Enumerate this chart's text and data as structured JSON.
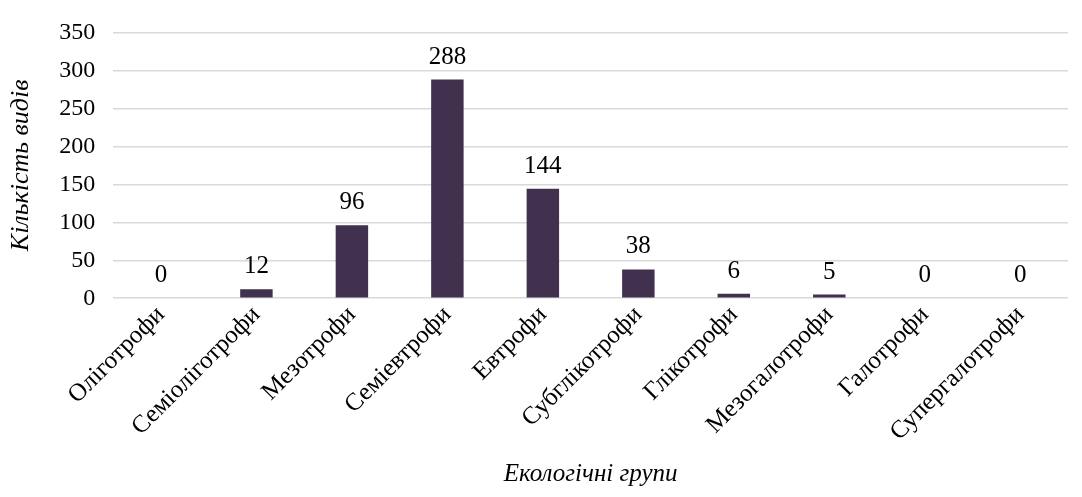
{
  "chart_data": {
    "type": "bar",
    "categories": [
      "Оліготрофи",
      "Семіоліготрофи",
      "Мезотрофи",
      "Семіевтрофи",
      "Евтрофи",
      "Субглікотрофи",
      "Глікотрофи",
      "Мезогалотрофи",
      "Галотрофи",
      "Супергалотрофи"
    ],
    "values": [
      0,
      12,
      96,
      288,
      144,
      38,
      6,
      5,
      0,
      0
    ],
    "color": "#41314f",
    "xlabel": "Екологічні групи",
    "ylabel": "Кількість видів",
    "ylim": [
      0,
      350
    ],
    "yticks": [
      0,
      50,
      100,
      150,
      200,
      250,
      300,
      350
    ],
    "grid": "y",
    "data_labels": true
  }
}
